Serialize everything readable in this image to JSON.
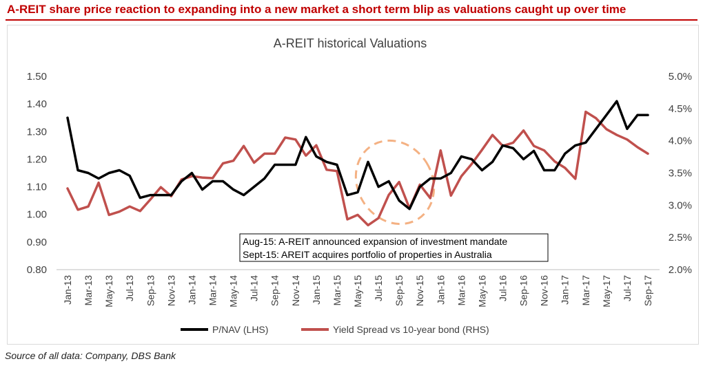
{
  "headline": "A-REIT share price reaction to expanding into a new market a short term blip as valuations caught up over time",
  "source": "Source of all data: Company, DBS Bank",
  "colors": {
    "headline": "#c00000",
    "pnav": "#000000",
    "yield": "#c0504d",
    "ellipse": "#f4b183"
  },
  "chart_data": {
    "type": "line",
    "title": "A-REIT historical  Valuations",
    "x_tick_labels": [
      "Jan-13",
      "Mar-13",
      "May-13",
      "Jul-13",
      "Sep-13",
      "Nov-13",
      "Jan-14",
      "Mar-14",
      "May-14",
      "Jul-14",
      "Sep-14",
      "Nov-14",
      "Jan-15",
      "Mar-15",
      "May-15",
      "Jul-15",
      "Sep-15",
      "Nov-15",
      "Jan-16",
      "Mar-16",
      "May-16",
      "Jul-16",
      "Sep-16",
      "Nov-16",
      "Jan-17",
      "Mar-17",
      "May-17",
      "Jul-17",
      "Sep-17"
    ],
    "x": [
      "Jan-13",
      "Feb-13",
      "Mar-13",
      "Apr-13",
      "May-13",
      "Jun-13",
      "Jul-13",
      "Aug-13",
      "Sep-13",
      "Oct-13",
      "Nov-13",
      "Dec-13",
      "Jan-14",
      "Feb-14",
      "Mar-14",
      "Apr-14",
      "May-14",
      "Jun-14",
      "Jul-14",
      "Aug-14",
      "Sep-14",
      "Oct-14",
      "Nov-14",
      "Dec-14",
      "Jan-15",
      "Feb-15",
      "Mar-15",
      "Apr-15",
      "May-15",
      "Jun-15",
      "Jul-15",
      "Aug-15",
      "Sep-15",
      "Oct-15",
      "Nov-15",
      "Dec-15",
      "Jan-16",
      "Feb-16",
      "Mar-16",
      "Apr-16",
      "May-16",
      "Jun-16",
      "Jul-16",
      "Aug-16",
      "Sep-16",
      "Oct-16",
      "Nov-16",
      "Dec-16",
      "Jan-17",
      "Feb-17",
      "Mar-17",
      "Apr-17",
      "May-17",
      "Jun-17",
      "Jul-17",
      "Aug-17",
      "Sep-17"
    ],
    "ylim_left": [
      0.8,
      1.5
    ],
    "left_ticks": [
      "0.80",
      "0.90",
      "1.00",
      "1.10",
      "1.20",
      "1.30",
      "1.40",
      "1.50"
    ],
    "ylim_right": [
      2.0,
      5.0
    ],
    "right_ticks": [
      "2.0%",
      "2.5%",
      "3.0%",
      "3.5%",
      "4.0%",
      "4.5%",
      "5.0%"
    ],
    "series": [
      {
        "name": "P/NAV (LHS)",
        "axis": "left",
        "values": [
          1.35,
          1.16,
          1.15,
          1.13,
          1.15,
          1.16,
          1.14,
          1.06,
          1.07,
          1.07,
          1.07,
          1.12,
          1.15,
          1.09,
          1.12,
          1.12,
          1.09,
          1.07,
          1.1,
          1.13,
          1.18,
          1.18,
          1.18,
          1.28,
          1.21,
          1.19,
          1.18,
          1.07,
          1.08,
          1.19,
          1.1,
          1.12,
          1.05,
          1.02,
          1.1,
          1.13,
          1.13,
          1.15,
          1.21,
          1.2,
          1.16,
          1.19,
          1.25,
          1.24,
          1.2,
          1.23,
          1.16,
          1.16,
          1.22,
          1.25,
          1.26,
          1.31,
          1.36,
          1.41,
          1.31,
          1.36,
          1.36
        ]
      },
      {
        "name": "Yield Spread vs 10-year bond (RHS)",
        "axis": "right",
        "values": [
          3.26,
          2.93,
          2.98,
          3.35,
          2.85,
          2.9,
          2.98,
          2.91,
          3.09,
          3.28,
          3.14,
          3.4,
          3.45,
          3.43,
          3.42,
          3.65,
          3.69,
          3.92,
          3.66,
          3.8,
          3.8,
          4.05,
          4.02,
          3.77,
          3.93,
          3.55,
          3.53,
          2.78,
          2.85,
          2.69,
          2.8,
          3.16,
          3.36,
          2.95,
          3.32,
          3.11,
          3.85,
          3.15,
          3.45,
          3.64,
          3.86,
          4.09,
          3.92,
          3.97,
          4.16,
          3.92,
          3.85,
          3.68,
          3.58,
          3.41,
          4.45,
          4.35,
          4.18,
          4.09,
          4.02,
          3.9,
          3.8
        ]
      }
    ],
    "annotations": [
      "Aug-15: A-REIT announced expansion of investment mandate",
      "Sept-15: AREIT acquires portfolio of properties in Australia"
    ],
    "grid": false,
    "legend": "bottom"
  }
}
